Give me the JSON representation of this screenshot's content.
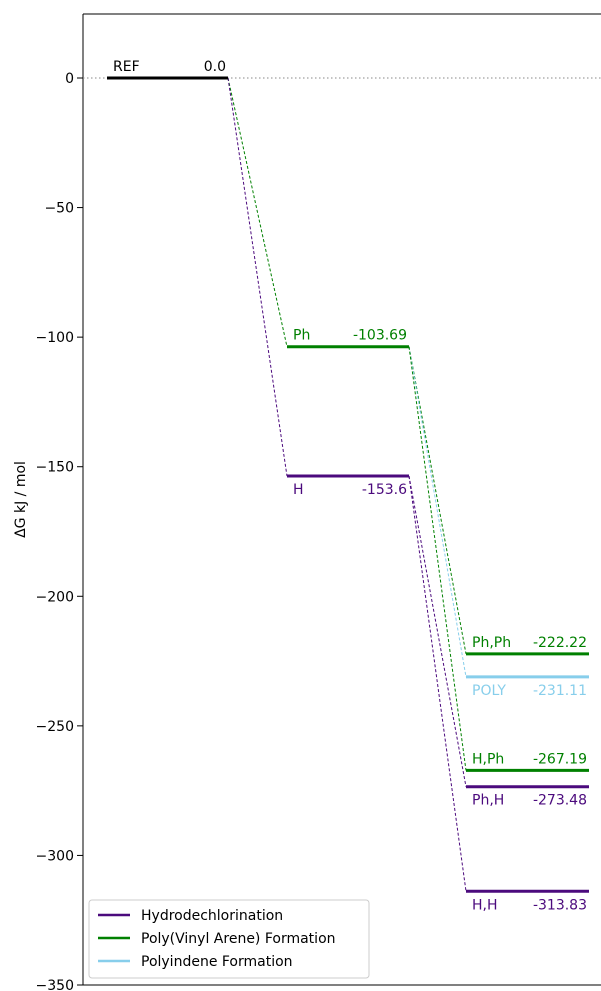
{
  "chart_data": {
    "type": "line",
    "title": "",
    "xlabel": "",
    "ylabel": "ΔG  kJ / mol",
    "ylim": [
      -350,
      25
    ],
    "yticks": [
      0,
      -50,
      -100,
      -150,
      -200,
      -250,
      -300,
      -350
    ],
    "ytick_labels": [
      "0",
      "−50",
      "−100",
      "−150",
      "−200",
      "−250",
      "−300",
      "−350"
    ],
    "zero_line": "dotted",
    "grid": false,
    "legend": {
      "position": "bottom-left"
    },
    "colors": {
      "Reference": "#000000",
      "Hydrodechlorination": "#4b0a7d",
      "Poly(Vinyl Arene) Formation": "#008000",
      "Polyindene Formation": "#87ceeb"
    },
    "levels": [
      {
        "stage": 0,
        "name": "REF",
        "value": 0.0,
        "value_label": "0.0",
        "series": "Reference"
      },
      {
        "stage": 1,
        "name": "Ph",
        "value": -103.69,
        "value_label": "-103.69",
        "series": "Poly(Vinyl Arene) Formation"
      },
      {
        "stage": 1,
        "name": "H",
        "value": -153.6,
        "value_label": "-153.6",
        "series": "Hydrodechlorination"
      },
      {
        "stage": 2,
        "name": "Ph,Ph",
        "value": -222.22,
        "value_label": "-222.22",
        "series": "Poly(Vinyl Arene) Formation"
      },
      {
        "stage": 2,
        "name": "POLY",
        "value": -231.11,
        "value_label": "-231.11",
        "series": "Polyindene Formation"
      },
      {
        "stage": 2,
        "name": "H,Ph",
        "value": -267.19,
        "value_label": "-267.19",
        "series": "Poly(Vinyl Arene) Formation"
      },
      {
        "stage": 2,
        "name": "Ph,H",
        "value": -273.48,
        "value_label": "-273.48",
        "series": "Hydrodechlorination"
      },
      {
        "stage": 2,
        "name": "H,H",
        "value": -313.83,
        "value_label": "-313.83",
        "series": "Hydrodechlorination"
      }
    ],
    "connections": [
      {
        "from": "REF",
        "to": "Ph",
        "series": "Poly(Vinyl Arene) Formation"
      },
      {
        "from": "REF",
        "to": "H",
        "series": "Hydrodechlorination"
      },
      {
        "from": "Ph",
        "to": "Ph,Ph",
        "series": "Poly(Vinyl Arene) Formation"
      },
      {
        "from": "Ph",
        "to": "POLY",
        "series": "Polyindene Formation"
      },
      {
        "from": "Ph",
        "to": "H,Ph",
        "series": "Poly(Vinyl Arene) Formation"
      },
      {
        "from": "H",
        "to": "Ph,H",
        "series": "Hydrodechlorination"
      },
      {
        "from": "H",
        "to": "H,H",
        "series": "Hydrodechlorination"
      }
    ],
    "legend_entries": [
      "Hydrodechlorination",
      "Poly(Vinyl Arene) Formation",
      "Polyindene Formation"
    ]
  }
}
